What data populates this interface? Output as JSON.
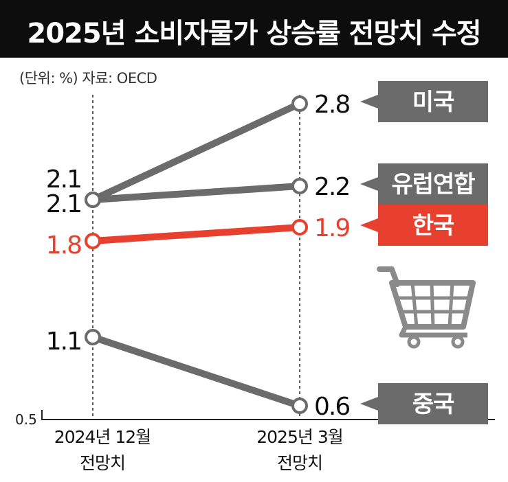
{
  "header": {
    "title": "2025년 소비자물가 상승률 전망치 수정"
  },
  "meta": {
    "unit_source": "(단위: %) 자료: OECD"
  },
  "colors": {
    "gray": "#6b6b6b",
    "red": "#e8402e",
    "black": "#0d0d0d"
  },
  "icons": {
    "cart": "shopping-cart-icon"
  },
  "chart_data": {
    "type": "line",
    "title": "2025년 소비자물가 상승률 전망치 수정",
    "unit": "%",
    "source": "OECD",
    "categories": [
      "2024년 12월 전망치",
      "2025년 3월 전망치"
    ],
    "category_lines": [
      [
        "2024년 12월",
        "전망치"
      ],
      [
        "2025년 3월",
        "전망치"
      ]
    ],
    "ylim": [
      0.5,
      2.85
    ],
    "ymin_label": "0.5",
    "grid": false,
    "series": [
      {
        "name": "미국",
        "values": [
          2.1,
          2.8
        ],
        "start_label": "2.1",
        "end_label": "2.8",
        "highlight": false
      },
      {
        "name": "유럽연합",
        "values": [
          2.1,
          2.2
        ],
        "start_label": "2.1",
        "end_label": "2.2",
        "highlight": false
      },
      {
        "name": "한국",
        "values": [
          1.8,
          1.9
        ],
        "start_label": "1.8",
        "end_label": "1.9",
        "highlight": true
      },
      {
        "name": "중국",
        "values": [
          1.1,
          0.6
        ],
        "start_label": "1.1",
        "end_label": "0.6",
        "highlight": false
      }
    ]
  }
}
